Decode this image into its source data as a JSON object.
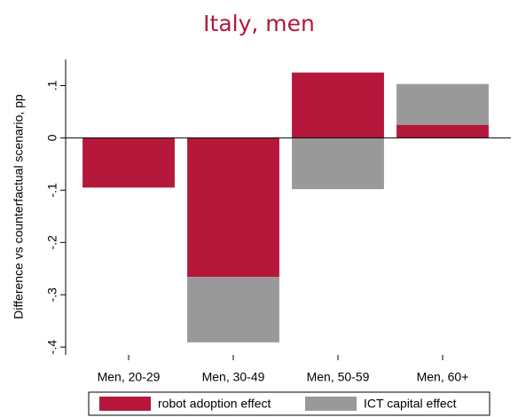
{
  "chart_data": {
    "type": "bar",
    "stacked": true,
    "title": "Italy, men",
    "ylabel": "Difference vs counterfactual scenario, pp",
    "categories": [
      "Men, 20-29",
      "Men, 30-49",
      "Men, 50-59",
      "Men, 60+"
    ],
    "series": [
      {
        "name": "robot adoption effect",
        "color": "#b5173b",
        "values": [
          -0.095,
          -0.266,
          0.125,
          0.025
        ]
      },
      {
        "name": "ICT capital effect",
        "color": "#999999",
        "values": [
          0,
          -0.125,
          -0.098,
          0.078
        ]
      }
    ],
    "ylim": [
      -0.415,
      0.15
    ],
    "yticks": [
      {
        "value": -0.4,
        "label": "-.4"
      },
      {
        "value": -0.3,
        "label": "-.3"
      },
      {
        "value": -0.2,
        "label": "-.2"
      },
      {
        "value": -0.1,
        "label": "-.1"
      },
      0,
      {
        "value": 0.1,
        "label": ".1"
      }
    ],
    "legend": "bottom"
  }
}
